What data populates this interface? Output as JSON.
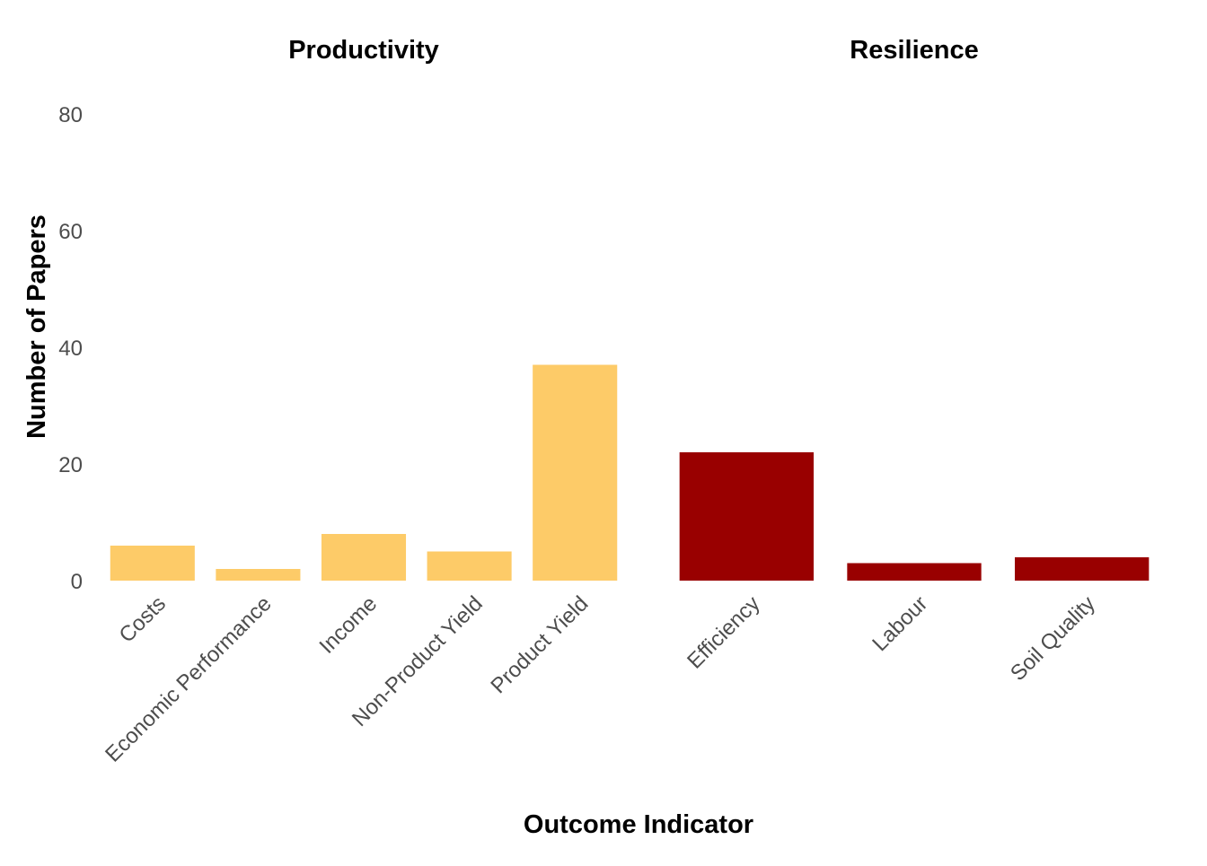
{
  "chart_data": {
    "type": "bar",
    "xlabel": "Outcome Indicator",
    "ylabel": "Number of Papers",
    "ylim": [
      0,
      80
    ],
    "yticks": [
      0,
      20,
      40,
      60,
      80
    ],
    "grid": false,
    "facets": [
      {
        "title": "Productivity",
        "color": "#FDCB68",
        "categories": [
          "Costs",
          "Economic Performance",
          "Income",
          "Non-Product Yield",
          "Product Yield"
        ],
        "values": [
          6,
          2,
          8,
          5,
          37
        ]
      },
      {
        "title": "Resilience",
        "color": "#990000",
        "categories": [
          "Efficiency",
          "Labour",
          "Soil Quality"
        ],
        "values": [
          22,
          3,
          4
        ]
      }
    ]
  }
}
